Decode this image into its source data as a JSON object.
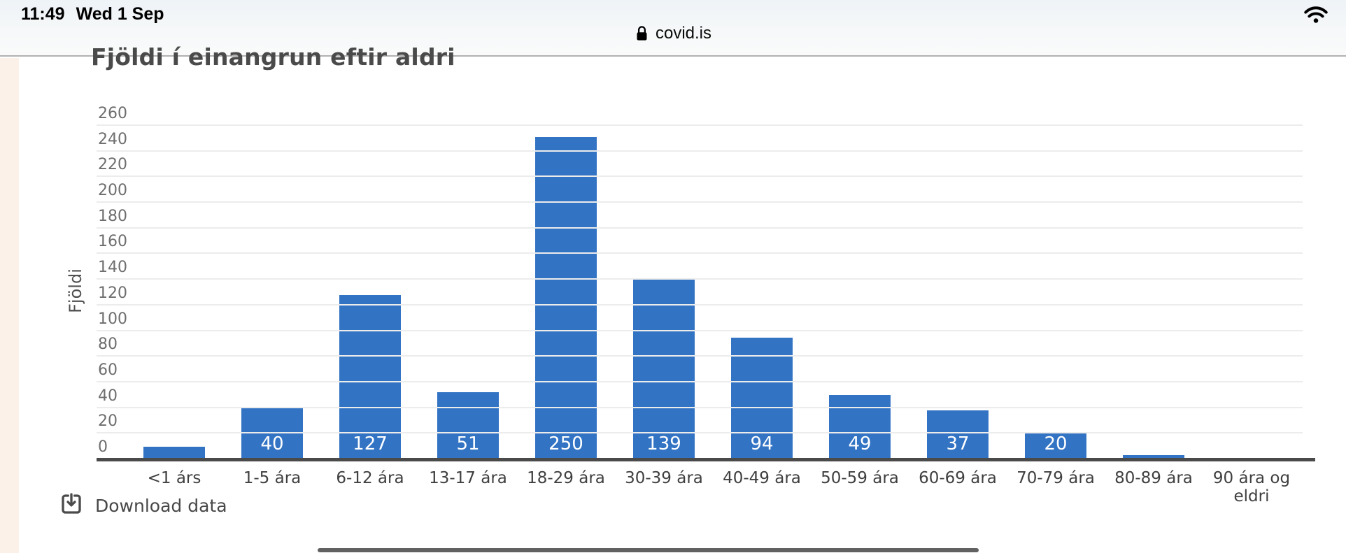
{
  "status_bar": {
    "time": "11:49",
    "date": "Wed 1 Sep",
    "wifi_icon": "wifi"
  },
  "browser_chrome": {
    "lock_icon": "lock",
    "site": "covid.is"
  },
  "chart_data": {
    "type": "bar",
    "title": "Fjöldi í einangrun eftir aldri",
    "xlabel": "",
    "ylabel": "Fjöldi",
    "categories": [
      "<1 árs",
      "1-5 ára",
      "6-12 ára",
      "13-17 ára",
      "18-29 ára",
      "30-39 ára",
      "40-49 ára",
      "50-59 ára",
      "60-69 ára",
      "70-79 ára",
      "80-89 ára",
      "90 ára og eldri"
    ],
    "values": [
      9,
      40,
      127,
      51,
      250,
      139,
      94,
      49,
      37,
      20,
      2,
      0
    ],
    "bar_labels": [
      "",
      "40",
      "127",
      "51",
      "250",
      "139",
      "94",
      "49",
      "37",
      "20",
      "",
      ""
    ],
    "yticks": [
      0,
      20,
      40,
      60,
      80,
      100,
      120,
      140,
      160,
      180,
      200,
      220,
      240,
      260
    ],
    "ylim": [
      0,
      260
    ],
    "grid": "horizontal",
    "legend": "none",
    "bar_color": "#3273c4",
    "axis_color": "#4a4a4a",
    "gridline_color": "#ececec"
  },
  "footer": {
    "download_icon": "download-tray",
    "download_label": "Download data"
  }
}
